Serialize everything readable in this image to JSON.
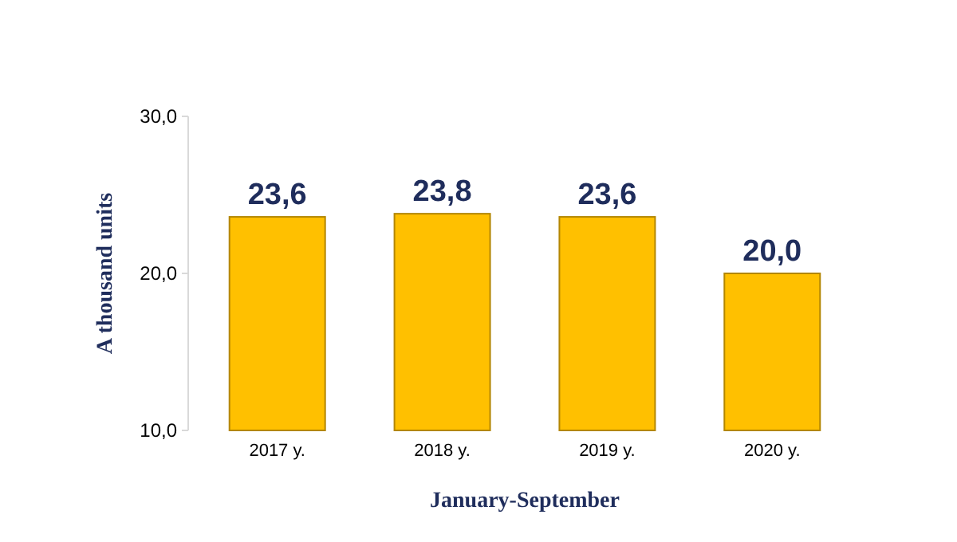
{
  "chart_data": {
    "type": "bar",
    "xlabel": "January-September",
    "ylabel": "A thousand units",
    "categories": [
      "2017 y.",
      "2018 y.",
      "2019 y.",
      "2020 y."
    ],
    "values": [
      23.6,
      23.8,
      23.6,
      20.0
    ],
    "value_labels": [
      "23,6",
      "23,8",
      "23,6",
      "20,0"
    ],
    "color": "#ffc000",
    "ylim": [
      10,
      30
    ],
    "yticks": [
      {
        "value": 10,
        "label": "10,0"
      },
      {
        "value": 20,
        "label": "20,0"
      },
      {
        "value": 30,
        "label": "30,0"
      }
    ],
    "grid": false
  }
}
